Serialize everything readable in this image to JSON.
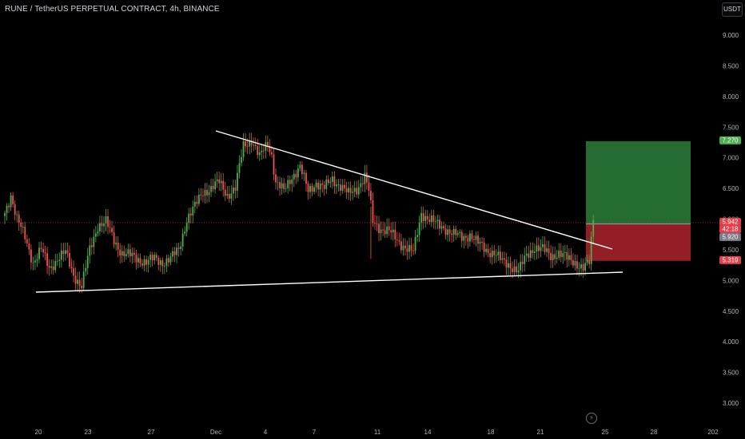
{
  "header": {
    "title": "RUNE / TetherUS PERPETUAL CONTRACT, 4h, BINANCE",
    "currency_button": "USDT",
    "replay_icon": "lightning-icon"
  },
  "chart_data": {
    "type": "candlestick",
    "symbol": "RUNE / TetherUS PERPETUAL CONTRACT",
    "interval": "4h",
    "exchange": "BINANCE",
    "y_axis": {
      "ticks": [
        "9.000",
        "8.500",
        "8.000",
        "7.500",
        "7.000",
        "6.500",
        "6.000",
        "5.500",
        "5.000",
        "4.500",
        "4.000",
        "3.500",
        "3.000"
      ],
      "range": [
        2.8,
        9.3
      ]
    },
    "x_axis": {
      "ticks": [
        "20",
        "23",
        "27",
        "Dec",
        "4",
        "7",
        "11",
        "14",
        "18",
        "21",
        "25",
        "28",
        "202"
      ]
    },
    "anchor_closes": [
      [
        0,
        6.1
      ],
      [
        3,
        6.4
      ],
      [
        6,
        6.0
      ],
      [
        10,
        5.7
      ],
      [
        14,
        5.3
      ],
      [
        18,
        5.5
      ],
      [
        22,
        5.2
      ],
      [
        26,
        5.35
      ],
      [
        30,
        5.45
      ],
      [
        34,
        5.1
      ],
      [
        38,
        4.9
      ],
      [
        42,
        5.5
      ],
      [
        46,
        5.9
      ],
      [
        50,
        5.95
      ],
      [
        54,
        5.65
      ],
      [
        58,
        5.45
      ],
      [
        62,
        5.4
      ],
      [
        66,
        5.35
      ],
      [
        70,
        5.3
      ],
      [
        74,
        5.35
      ],
      [
        78,
        5.3
      ],
      [
        82,
        5.35
      ],
      [
        86,
        5.5
      ],
      [
        90,
        6.0
      ],
      [
        94,
        6.2
      ],
      [
        98,
        6.45
      ],
      [
        102,
        6.5
      ],
      [
        106,
        6.6
      ],
      [
        110,
        6.4
      ],
      [
        114,
        6.5
      ],
      [
        118,
        7.2
      ],
      [
        122,
        7.3
      ],
      [
        126,
        7.0
      ],
      [
        130,
        7.25
      ],
      [
        132,
        7.05
      ],
      [
        134,
        6.6
      ],
      [
        138,
        6.45
      ],
      [
        142,
        6.7
      ],
      [
        146,
        6.85
      ],
      [
        150,
        6.45
      ],
      [
        154,
        6.6
      ],
      [
        158,
        6.5
      ],
      [
        162,
        6.65
      ],
      [
        166,
        6.55
      ],
      [
        170,
        6.4
      ],
      [
        174,
        6.5
      ],
      [
        178,
        6.7
      ],
      [
        180,
        6.45
      ],
      [
        182,
        5.95
      ],
      [
        186,
        5.85
      ],
      [
        190,
        5.8
      ],
      [
        194,
        5.65
      ],
      [
        198,
        5.55
      ],
      [
        202,
        5.45
      ],
      [
        206,
        6.1
      ],
      [
        210,
        6.0
      ],
      [
        214,
        5.9
      ],
      [
        218,
        5.85
      ],
      [
        222,
        5.75
      ],
      [
        226,
        5.7
      ],
      [
        230,
        5.75
      ],
      [
        234,
        5.6
      ],
      [
        238,
        5.5
      ],
      [
        242,
        5.45
      ],
      [
        246,
        5.3
      ],
      [
        250,
        5.25
      ],
      [
        254,
        5.15
      ],
      [
        258,
        5.4
      ],
      [
        262,
        5.55
      ],
      [
        266,
        5.5
      ],
      [
        270,
        5.4
      ],
      [
        274,
        5.45
      ],
      [
        278,
        5.35
      ],
      [
        282,
        5.3
      ],
      [
        286,
        5.2
      ],
      [
        289,
        5.28
      ],
      [
        291,
        6.0
      ]
    ],
    "current_price": 5.942,
    "countdown": "42:18",
    "trendlines": [
      {
        "name": "descending-resistance",
        "from": [
          "Dec 2",
          7.43
        ],
        "to": [
          "Dec 25",
          5.52
        ]
      },
      {
        "name": "ascending-support",
        "from": [
          "Nov 20",
          4.84
        ],
        "to": [
          "Dec 26",
          5.15
        ]
      }
    ],
    "position": {
      "type": "long",
      "entry": 5.92,
      "target": 7.27,
      "stop": 5.319,
      "target_color": "#2f8a3e",
      "stop_color": "#b8262f"
    },
    "price_labels": [
      {
        "value": "7.270",
        "color": "#4caf50",
        "text_color": "#ffffff"
      },
      {
        "value": "5.942",
        "color": "#e0404a",
        "text_color": "#ffffff"
      },
      {
        "value": "42:18",
        "color": "#e0404a",
        "text_color": "#ffffff"
      },
      {
        "value": "5.920",
        "color": "#787b86",
        "text_color": "#ffffff"
      },
      {
        "value": "5.319",
        "color": "#e0404a",
        "text_color": "#ffffff"
      }
    ],
    "colors": {
      "up": "#26a69a",
      "up_alt": "#4caf50",
      "down": "#ef5350",
      "background": "#000000",
      "trendline": "#ffffff"
    }
  }
}
